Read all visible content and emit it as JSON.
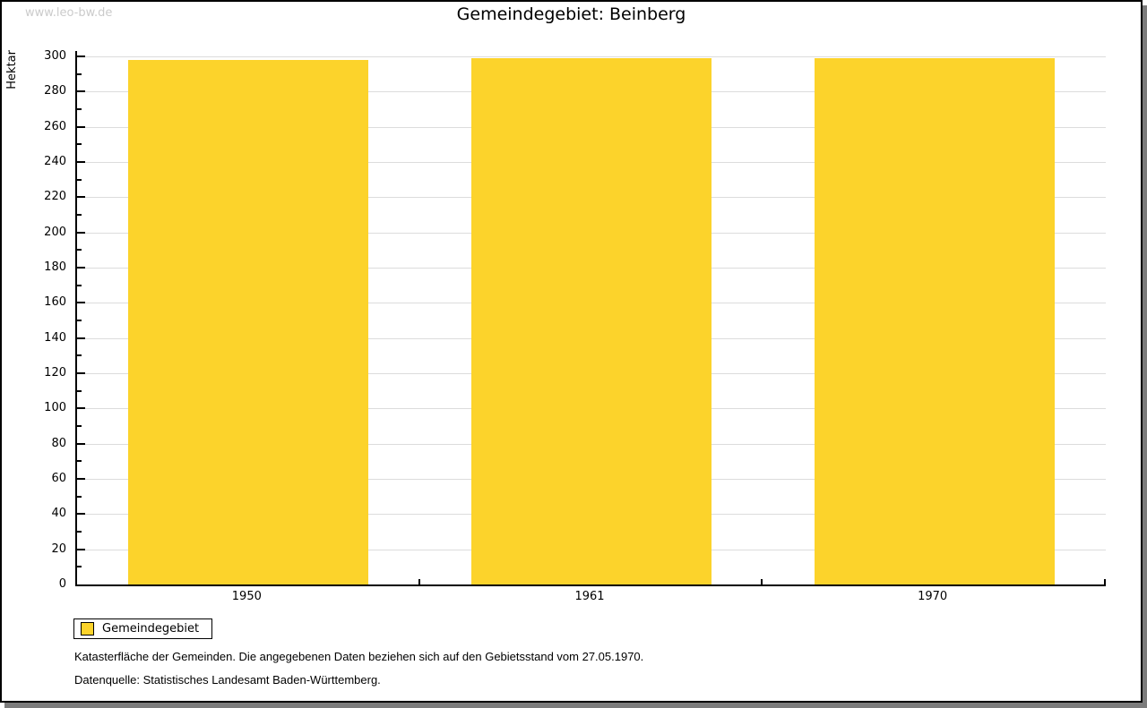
{
  "watermark": "www.leo-bw.de",
  "chart_data": {
    "type": "bar",
    "title": "Gemeindegebiet: Beinberg",
    "xlabel": "",
    "ylabel": "Hektar",
    "categories": [
      "1950",
      "1961",
      "1970"
    ],
    "series": [
      {
        "name": "Gemeindegebiet",
        "values": [
          298,
          299,
          299
        ]
      }
    ],
    "ylim": [
      0,
      300
    ],
    "y_major_step": 20,
    "y_minor_step": 10,
    "y_tick_labels": [
      "0",
      "20",
      "40",
      "60",
      "80",
      "100",
      "120",
      "140",
      "160",
      "180",
      "200",
      "220",
      "240",
      "260",
      "280",
      "300"
    ],
    "grid": true,
    "legend_position": "bottom-left"
  },
  "legend": {
    "items": [
      {
        "label": "Gemeindegebiet",
        "color": "#fcd32b"
      }
    ]
  },
  "footnotes": [
    "Katasterfläche der Gemeinden. Die angegebenen Daten beziehen sich auf den Gebietsstand vom 27.05.1970.",
    "Datenquelle: Statistisches Landesamt Baden-Württemberg."
  ],
  "colors": {
    "bar": "#fcd32b",
    "grid": "#dcdcdc",
    "axis": "#000000",
    "watermark": "#cbcbcb",
    "shadow": "#7c7c7c"
  }
}
